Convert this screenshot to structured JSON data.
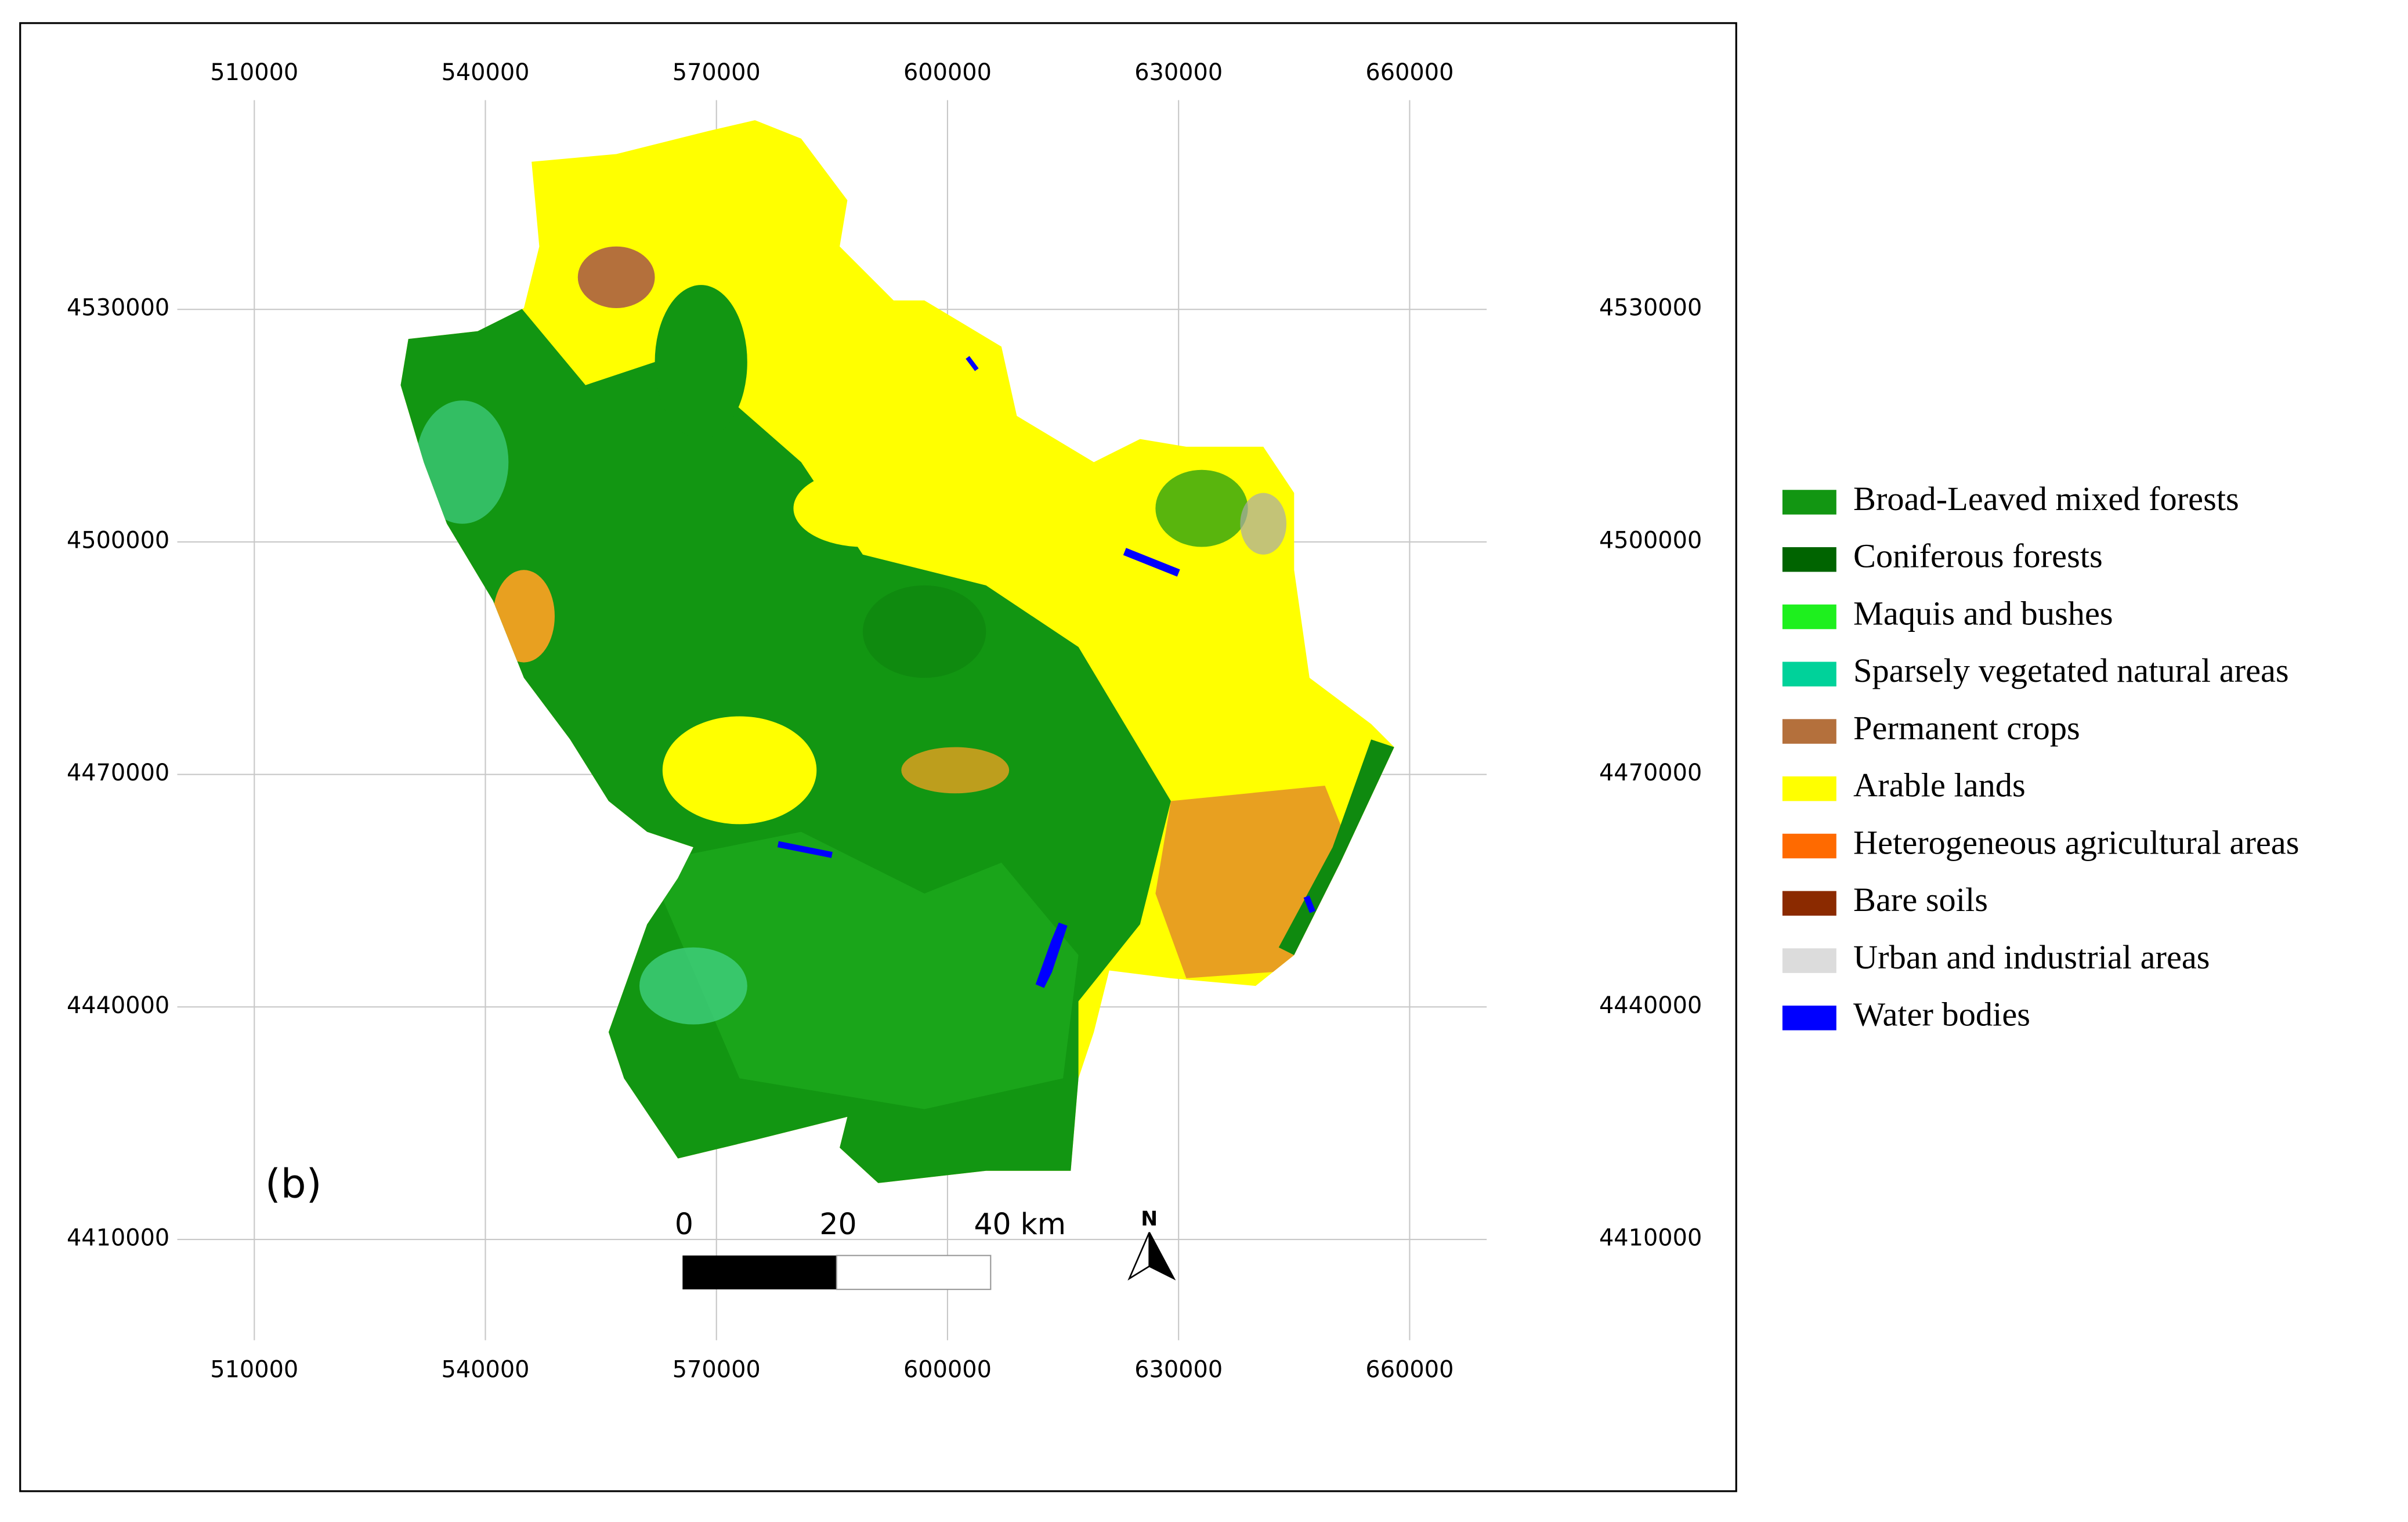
{
  "map": {
    "xlim": [
      500000,
      670000
    ],
    "ylim": [
      4397000,
      4557000
    ],
    "xticks": [
      510000,
      540000,
      570000,
      600000,
      630000,
      660000
    ],
    "yticks": [
      4410000,
      4440000,
      4470000,
      4500000,
      4530000
    ]
  },
  "panel_label": "(b)",
  "scale_bar": {
    "labels": [
      0,
      20,
      "40 km"
    ]
  },
  "north_label": "N",
  "legend": [
    {
      "label": "Broad-Leaved mixed forests",
      "color": "#129612"
    },
    {
      "label": "Coniferous forests",
      "color": "#006400"
    },
    {
      "label": "Maquis and bushes",
      "color": "#1ef01e"
    },
    {
      "label": "Sparsely vegetated natural areas",
      "color": "#00d29a"
    },
    {
      "label": "Permanent crops",
      "color": "#b4703c"
    },
    {
      "label": "Arable lands",
      "color": "#ffff00"
    },
    {
      "label": "Heterogeneous agricultural areas",
      "color": "#ff6a00"
    },
    {
      "label": "Bare soils",
      "color": "#8b2a00"
    },
    {
      "label": "Urban and industrial areas",
      "color": "#dcdcdc"
    },
    {
      "label": "Water bodies",
      "color": "#0000ff"
    }
  ]
}
